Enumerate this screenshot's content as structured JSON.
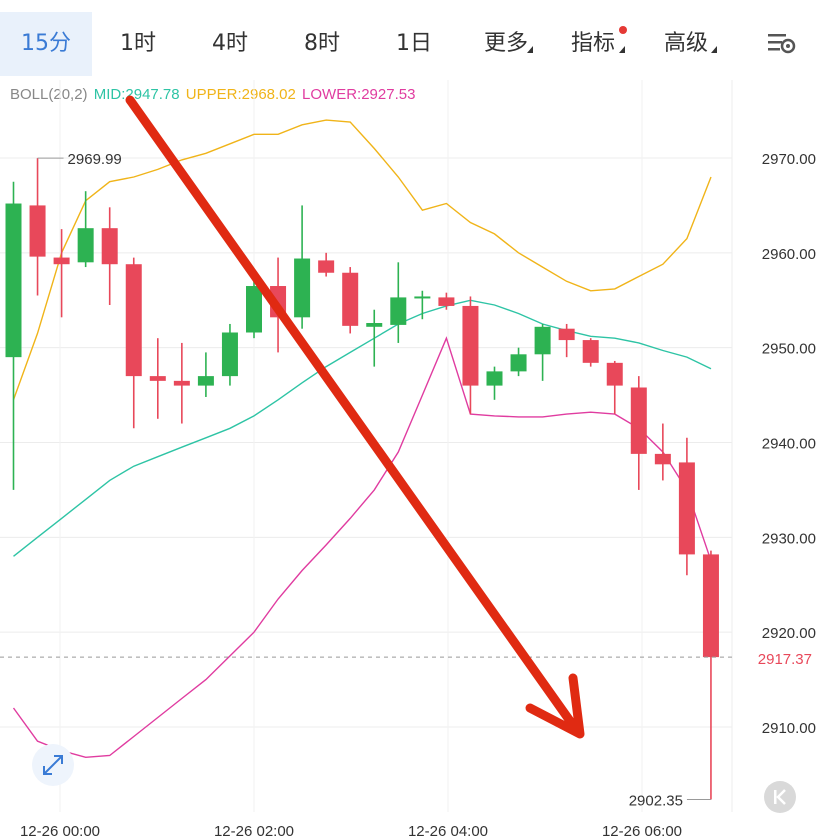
{
  "timeframe_tabs": [
    {
      "label": "15分",
      "active": true
    },
    {
      "label": "1时",
      "active": false
    },
    {
      "label": "4时",
      "active": false
    },
    {
      "label": "8时",
      "active": false
    },
    {
      "label": "1日",
      "active": false
    },
    {
      "label": "更多",
      "active": false
    },
    {
      "label": "指标",
      "active": false
    },
    {
      "label": "高级",
      "active": false
    }
  ],
  "settings_icon": "chart-settings-icon",
  "indicator": {
    "name": "BOLL(20,2)",
    "mid_label": "MID:2947.78",
    "upper_label": "UPPER:2968.02",
    "lower_label": "LOWER:2927.53",
    "colors": {
      "mid": "#2ec4a5",
      "upper": "#f0b419",
      "lower": "#e03ca0"
    }
  },
  "colors": {
    "up": "#2db252",
    "down": "#e8485a",
    "grid": "#ececec",
    "current_price": "#e8485a"
  },
  "chart_data": {
    "type": "candlestick",
    "y_axis": {
      "range": [
        2901,
        2976
      ],
      "ticks": [
        "2970.00",
        "2960.00",
        "2950.00",
        "2940.00",
        "2930.00",
        "2920.00",
        "2910.00"
      ]
    },
    "x_axis": {
      "ticks": [
        "12-26 00:00",
        "12-26 02:00",
        "12-26 04:00",
        "12-26 06:00"
      ]
    },
    "current_price": "2917.37",
    "annotations": {
      "high": "2969.99",
      "low": "2902.35"
    },
    "candles": [
      {
        "o": 2949.0,
        "h": 2967.5,
        "l": 2935.0,
        "c": 2965.2
      },
      {
        "o": 2965.0,
        "h": 2969.99,
        "l": 2955.5,
        "c": 2959.6
      },
      {
        "o": 2959.5,
        "h": 2962.5,
        "l": 2953.2,
        "c": 2958.8
      },
      {
        "o": 2959.0,
        "h": 2966.5,
        "l": 2958.5,
        "c": 2962.6
      },
      {
        "o": 2962.6,
        "h": 2964.8,
        "l": 2954.5,
        "c": 2958.8
      },
      {
        "o": 2958.8,
        "h": 2959.5,
        "l": 2941.5,
        "c": 2947.0
      },
      {
        "o": 2947.0,
        "h": 2951.0,
        "l": 2942.5,
        "c": 2946.5
      },
      {
        "o": 2946.5,
        "h": 2950.5,
        "l": 2942.0,
        "c": 2946.0
      },
      {
        "o": 2946.0,
        "h": 2949.5,
        "l": 2944.8,
        "c": 2947.0
      },
      {
        "o": 2947.0,
        "h": 2952.5,
        "l": 2946.0,
        "c": 2951.6
      },
      {
        "o": 2951.6,
        "h": 2958.0,
        "l": 2951.0,
        "c": 2956.5
      },
      {
        "o": 2956.5,
        "h": 2959.5,
        "l": 2949.5,
        "c": 2953.2
      },
      {
        "o": 2953.2,
        "h": 2965.0,
        "l": 2952.0,
        "c": 2959.4
      },
      {
        "o": 2959.2,
        "h": 2960.0,
        "l": 2957.5,
        "c": 2957.9
      },
      {
        "o": 2957.9,
        "h": 2958.5,
        "l": 2951.5,
        "c": 2952.3
      },
      {
        "o": 2952.2,
        "h": 2954.0,
        "l": 2948.0,
        "c": 2952.6
      },
      {
        "o": 2952.4,
        "h": 2959.0,
        "l": 2950.5,
        "c": 2955.3
      },
      {
        "o": 2955.2,
        "h": 2956.0,
        "l": 2953.0,
        "c": 2955.4
      },
      {
        "o": 2955.3,
        "h": 2955.8,
        "l": 2954.0,
        "c": 2954.4
      },
      {
        "o": 2954.4,
        "h": 2955.4,
        "l": 2943.0,
        "c": 2946.0
      },
      {
        "o": 2946.0,
        "h": 2948.0,
        "l": 2944.5,
        "c": 2947.5
      },
      {
        "o": 2947.5,
        "h": 2950.0,
        "l": 2947.0,
        "c": 2949.3
      },
      {
        "o": 2949.3,
        "h": 2952.5,
        "l": 2946.5,
        "c": 2952.2
      },
      {
        "o": 2952.0,
        "h": 2952.5,
        "l": 2949.0,
        "c": 2950.8
      },
      {
        "o": 2950.8,
        "h": 2951.0,
        "l": 2948.0,
        "c": 2948.4
      },
      {
        "o": 2948.4,
        "h": 2948.6,
        "l": 2943.0,
        "c": 2946.0
      },
      {
        "o": 2945.8,
        "h": 2947.0,
        "l": 2935.0,
        "c": 2938.8
      },
      {
        "o": 2938.8,
        "h": 2942.0,
        "l": 2936.0,
        "c": 2937.7
      },
      {
        "o": 2937.9,
        "h": 2940.5,
        "l": 2926.0,
        "c": 2928.2
      },
      {
        "o": 2928.2,
        "h": 2928.6,
        "l": 2902.35,
        "c": 2917.37
      }
    ],
    "boll_upper": [
      2944.5,
      2951.5,
      2960.0,
      2965.5,
      2967.5,
      2968.0,
      2968.8,
      2969.8,
      2970.5,
      2971.5,
      2972.5,
      2972.5,
      2973.5,
      2974.0,
      2973.8,
      2971.0,
      2968.0,
      2964.5,
      2965.2,
      2963.2,
      2962.0,
      2960.0,
      2958.5,
      2957.0,
      2956.0,
      2956.2,
      2957.5,
      2958.8,
      2961.5,
      2968.0
    ],
    "boll_mid": [
      2928.0,
      2930.0,
      2932.0,
      2934.0,
      2936.0,
      2937.5,
      2938.5,
      2939.5,
      2940.5,
      2941.5,
      2942.8,
      2944.5,
      2946.3,
      2948.0,
      2949.5,
      2951.0,
      2952.5,
      2953.6,
      2954.4,
      2955.0,
      2954.5,
      2953.6,
      2952.5,
      2951.8,
      2951.2,
      2951.0,
      2950.5,
      2949.7,
      2949.0,
      2947.78
    ],
    "boll_lower": [
      2912.0,
      2908.5,
      2907.5,
      2906.8,
      2907.0,
      2909.0,
      2911.0,
      2913.0,
      2915.0,
      2917.5,
      2920.0,
      2923.5,
      2926.5,
      2929.2,
      2932.0,
      2935.0,
      2939.0,
      2945.0,
      2951.0,
      2943.0,
      2942.8,
      2942.7,
      2942.7,
      2943.0,
      2943.2,
      2943.0,
      2941.5,
      2939.0,
      2935.0,
      2927.53
    ]
  }
}
